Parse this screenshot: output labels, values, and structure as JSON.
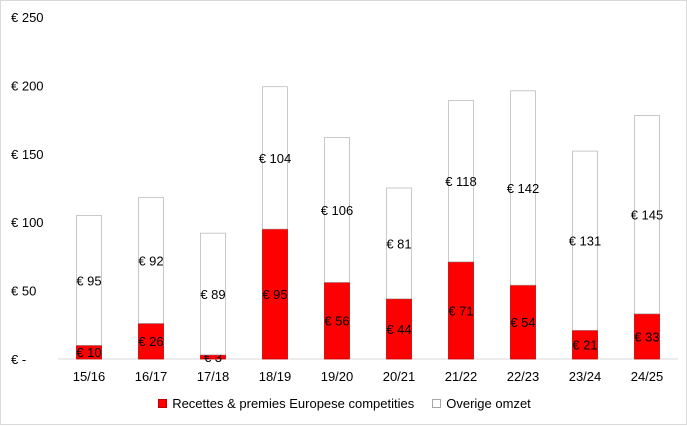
{
  "chart_data": {
    "type": "bar",
    "stacked": true,
    "categories": [
      "15/16",
      "16/17",
      "17/18",
      "18/19",
      "19/20",
      "20/21",
      "21/22",
      "22/23",
      "23/24",
      "24/25"
    ],
    "series": [
      {
        "name": "Recettes & premies Europese competities",
        "values": [
          10,
          26,
          3,
          95,
          56,
          44,
          71,
          54,
          21,
          33
        ],
        "labels": [
          "€ 10",
          "€ 26",
          "€ 3",
          "€ 95",
          "€ 56",
          "€ 44",
          "€ 71",
          "€ 54",
          "€ 21",
          "€ 33"
        ],
        "color": "#ff0000"
      },
      {
        "name": "Overige omzet",
        "values": [
          95,
          92,
          89,
          104,
          106,
          81,
          118,
          142,
          131,
          145
        ],
        "labels": [
          "€ 95",
          "€ 92",
          "€ 89",
          "€ 104",
          "€ 106",
          "€ 81",
          "€ 118",
          "€ 142",
          "€ 131",
          "€ 145"
        ],
        "color": "#ffffff"
      }
    ],
    "y_ticks": [
      0,
      50,
      100,
      150,
      200,
      250
    ],
    "y_tick_labels": [
      "€ -",
      "€ 50",
      "€ 100",
      "€ 150",
      "€ 200",
      "€ 250"
    ],
    "ylim": [
      0,
      250
    ],
    "grid": false,
    "legend_position": "bottom"
  }
}
